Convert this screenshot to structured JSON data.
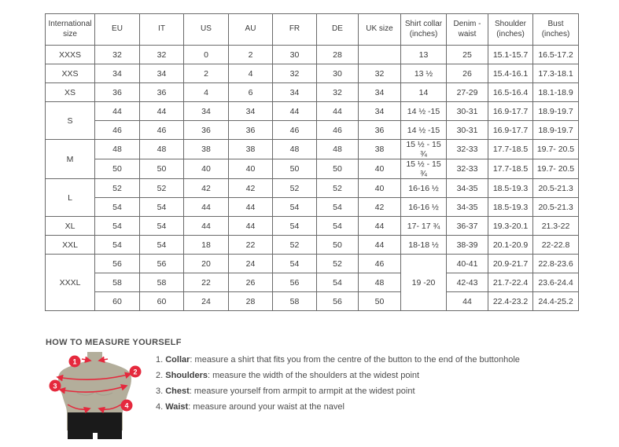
{
  "size_chart": {
    "headers": [
      {
        "label": "International size"
      },
      {
        "label": "EU"
      },
      {
        "label": "IT"
      },
      {
        "label": "US"
      },
      {
        "label": "AU"
      },
      {
        "label": "FR"
      },
      {
        "label": "DE"
      },
      {
        "label": "UK size"
      },
      {
        "label": "Shirt collar (inches)"
      },
      {
        "label": "Denim - waist"
      },
      {
        "label": "Shoulder (inches)"
      },
      {
        "label": "Bust (inches)"
      }
    ],
    "rows": [
      {
        "cells": [
          {
            "text": "XXXS"
          },
          {
            "text": "32"
          },
          {
            "text": "32"
          },
          {
            "text": "0"
          },
          {
            "text": "2"
          },
          {
            "text": "30"
          },
          {
            "text": "28"
          },
          {
            "text": ""
          },
          {
            "text": "13"
          },
          {
            "text": "25"
          },
          {
            "text": "15.1-15.7"
          },
          {
            "text": "16.5-17.2"
          }
        ]
      },
      {
        "cells": [
          {
            "text": "XXS"
          },
          {
            "text": "34"
          },
          {
            "text": "34"
          },
          {
            "text": "2"
          },
          {
            "text": "4"
          },
          {
            "text": "32"
          },
          {
            "text": "30"
          },
          {
            "text": "32"
          },
          {
            "text": "13 ½"
          },
          {
            "text": "26"
          },
          {
            "text": "15.4-16.1"
          },
          {
            "text": "17.3-18.1"
          }
        ]
      },
      {
        "cells": [
          {
            "text": "XS"
          },
          {
            "text": "36"
          },
          {
            "text": "36"
          },
          {
            "text": "4"
          },
          {
            "text": "6"
          },
          {
            "text": "34"
          },
          {
            "text": "32"
          },
          {
            "text": "34"
          },
          {
            "text": "14"
          },
          {
            "text": "27-29"
          },
          {
            "text": "16.5-16.4"
          },
          {
            "text": "18.1-18.9"
          }
        ]
      },
      {
        "cells": [
          {
            "text": "S",
            "rowspan": 2
          },
          {
            "text": "44"
          },
          {
            "text": "44"
          },
          {
            "text": "34"
          },
          {
            "text": "34"
          },
          {
            "text": "44"
          },
          {
            "text": "44"
          },
          {
            "text": "34"
          },
          {
            "text": "14 ½ -15"
          },
          {
            "text": "30-31"
          },
          {
            "text": "16.9-17.7"
          },
          {
            "text": "18.9-19.7"
          }
        ]
      },
      {
        "cells": [
          {
            "text": "46"
          },
          {
            "text": "46"
          },
          {
            "text": "36"
          },
          {
            "text": "36"
          },
          {
            "text": "46"
          },
          {
            "text": "46"
          },
          {
            "text": "36"
          },
          {
            "text": "14 ½ -15"
          },
          {
            "text": "30-31"
          },
          {
            "text": "16.9-17.7"
          },
          {
            "text": "18.9-19.7"
          }
        ]
      },
      {
        "cells": [
          {
            "text": "M",
            "rowspan": 2
          },
          {
            "text": "48"
          },
          {
            "text": "48"
          },
          {
            "text": "38"
          },
          {
            "text": "38"
          },
          {
            "text": "48"
          },
          {
            "text": "48"
          },
          {
            "text": "38"
          },
          {
            "text": "15 ½ - 15 ¾"
          },
          {
            "text": "32-33"
          },
          {
            "text": "17.7-18.5"
          },
          {
            "text": "19.7- 20.5"
          }
        ]
      },
      {
        "cells": [
          {
            "text": "50"
          },
          {
            "text": "50"
          },
          {
            "text": "40"
          },
          {
            "text": "40"
          },
          {
            "text": "50"
          },
          {
            "text": "50"
          },
          {
            "text": "40"
          },
          {
            "text": "15 ½ - 15 ¾"
          },
          {
            "text": "32-33"
          },
          {
            "text": "17.7-18.5"
          },
          {
            "text": "19.7- 20.5"
          }
        ]
      },
      {
        "cells": [
          {
            "text": "L",
            "rowspan": 2
          },
          {
            "text": "52"
          },
          {
            "text": "52"
          },
          {
            "text": "42"
          },
          {
            "text": "42"
          },
          {
            "text": "52"
          },
          {
            "text": "52"
          },
          {
            "text": "40"
          },
          {
            "text": "16-16 ½"
          },
          {
            "text": "34-35"
          },
          {
            "text": "18.5-19.3"
          },
          {
            "text": "20.5-21.3"
          }
        ]
      },
      {
        "cells": [
          {
            "text": "54"
          },
          {
            "text": "54"
          },
          {
            "text": "44"
          },
          {
            "text": "44"
          },
          {
            "text": "54"
          },
          {
            "text": "54"
          },
          {
            "text": "42"
          },
          {
            "text": "16-16 ½"
          },
          {
            "text": "34-35"
          },
          {
            "text": "18.5-19.3"
          },
          {
            "text": "20.5-21.3"
          }
        ]
      },
      {
        "cells": [
          {
            "text": "XL"
          },
          {
            "text": "54"
          },
          {
            "text": "54"
          },
          {
            "text": "44"
          },
          {
            "text": "44"
          },
          {
            "text": "54"
          },
          {
            "text": "54"
          },
          {
            "text": "44"
          },
          {
            "text": "17- 17 ¾"
          },
          {
            "text": "36-37"
          },
          {
            "text": "19.3-20.1"
          },
          {
            "text": "21.3-22"
          }
        ]
      },
      {
        "cells": [
          {
            "text": "XXL"
          },
          {
            "text": "54"
          },
          {
            "text": "54"
          },
          {
            "text": "18"
          },
          {
            "text": "22"
          },
          {
            "text": "52"
          },
          {
            "text": "50"
          },
          {
            "text": "44"
          },
          {
            "text": "18-18 ½"
          },
          {
            "text": "38-39"
          },
          {
            "text": "20.1-20.9"
          },
          {
            "text": "22-22.8"
          }
        ]
      },
      {
        "cells": [
          {
            "text": "XXXL",
            "rowspan": 3
          },
          {
            "text": "56"
          },
          {
            "text": "56"
          },
          {
            "text": "20"
          },
          {
            "text": "24"
          },
          {
            "text": "54"
          },
          {
            "text": "52"
          },
          {
            "text": "46"
          },
          {
            "text": "19 -20",
            "rowspan": 3
          },
          {
            "text": "40-41"
          },
          {
            "text": "20.9-21.7"
          },
          {
            "text": "22.8-23.6"
          }
        ]
      },
      {
        "cells": [
          {
            "text": "58"
          },
          {
            "text": "58"
          },
          {
            "text": "22"
          },
          {
            "text": "26"
          },
          {
            "text": "56"
          },
          {
            "text": "54"
          },
          {
            "text": "48"
          },
          {
            "text": "42-43"
          },
          {
            "text": "21.7-22.4"
          },
          {
            "text": "23.6-24.4"
          }
        ]
      },
      {
        "cells": [
          {
            "text": "60"
          },
          {
            "text": "60"
          },
          {
            "text": "24"
          },
          {
            "text": "28"
          },
          {
            "text": "58"
          },
          {
            "text": "56"
          },
          {
            "text": "50"
          },
          {
            "text": "44"
          },
          {
            "text": "22.4-23.2"
          },
          {
            "text": "24.4-25.2"
          }
        ]
      }
    ]
  },
  "how_to_measure": {
    "heading": "HOW TO MEASURE YOURSELF",
    "steps": [
      {
        "number": "1.",
        "label": "Collar",
        "description": ": measure a shirt that fits you from the centre of the button to the end of the buttonhole"
      },
      {
        "number": "2.",
        "label": "Shoulders",
        "description": ": measure the width of the shoulders at the widest point"
      },
      {
        "number": "3.",
        "label": "Chest",
        "description": ": measure yourself from armpit to armpit at the widest point"
      },
      {
        "number": "4.",
        "label": "Waist",
        "description": ": measure around your waist at the navel"
      }
    ],
    "figure_markers": [
      "1",
      "2",
      "3",
      "4"
    ]
  },
  "colors": {
    "accent_red": "#e5293d",
    "mannequin_body": "#b3ae9b",
    "mannequin_shorts": "#1a1a1a",
    "table_border": "#6a6a6a",
    "text": "#3a3a3a"
  }
}
